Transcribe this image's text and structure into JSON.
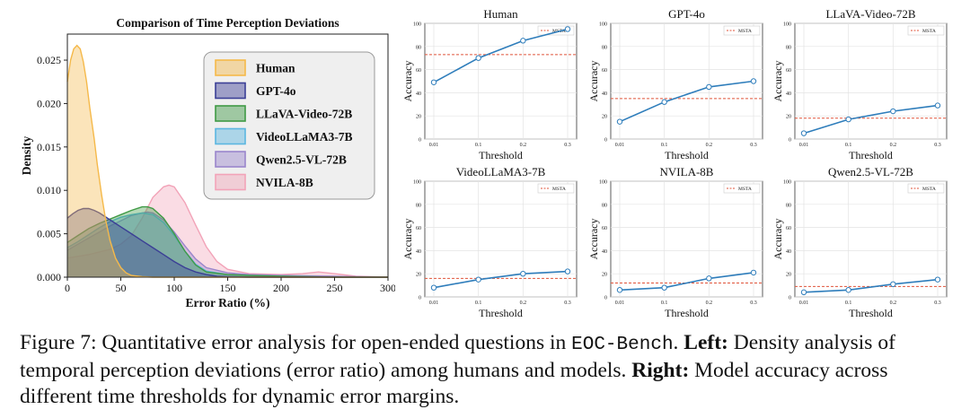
{
  "chart_data": [
    {
      "type": "area",
      "title": "Comparison of Time Perception Deviations",
      "xlabel": "Error Ratio (%)",
      "ylabel": "Density",
      "xlim": [
        0,
        300
      ],
      "ylim": [
        0,
        0.028
      ],
      "xticks": [
        "0",
        "50",
        "100",
        "150",
        "200",
        "250",
        "300"
      ],
      "yticks": [
        "0.000",
        "0.005",
        "0.010",
        "0.015",
        "0.020",
        "0.025"
      ],
      "legend_position": "top-right",
      "series": [
        {
          "name": "Human",
          "color": "#f5b94a",
          "x": [
            0,
            3,
            6,
            9,
            12,
            15,
            18,
            21,
            25,
            28,
            32,
            36,
            40,
            45,
            50,
            55,
            60,
            70,
            80,
            90,
            100,
            120,
            150,
            200,
            250,
            300
          ],
          "y": [
            0.0225,
            0.025,
            0.0263,
            0.0267,
            0.0263,
            0.0248,
            0.0225,
            0.0195,
            0.016,
            0.013,
            0.0095,
            0.0065,
            0.0042,
            0.0022,
            0.0011,
            0.0005,
            0.0002,
            5e-05,
            0,
            0,
            0,
            0,
            0,
            0,
            0,
            0
          ]
        },
        {
          "name": "GPT-4o",
          "color": "#3b3f96",
          "x": [
            0,
            5,
            10,
            15,
            20,
            25,
            30,
            40,
            50,
            60,
            70,
            80,
            90,
            100,
            110,
            120,
            130,
            140,
            150,
            170,
            200,
            250,
            300
          ],
          "y": [
            0.0068,
            0.0073,
            0.0077,
            0.0079,
            0.0079,
            0.0077,
            0.0074,
            0.0066,
            0.0058,
            0.005,
            0.0042,
            0.0034,
            0.0026,
            0.0018,
            0.0011,
            0.0006,
            0.0003,
            0.0001,
            5e-05,
            0,
            0,
            0,
            0
          ]
        },
        {
          "name": "LLaVA-Video-72B",
          "color": "#3f9a45",
          "x": [
            0,
            10,
            20,
            30,
            40,
            50,
            60,
            70,
            75,
            80,
            90,
            100,
            110,
            120,
            130,
            150,
            170,
            200,
            250,
            300
          ],
          "y": [
            0.004,
            0.0048,
            0.0056,
            0.0062,
            0.0067,
            0.0072,
            0.0077,
            0.0081,
            0.0081,
            0.0079,
            0.0068,
            0.005,
            0.003,
            0.0014,
            0.0006,
            0.0003,
            0.0002,
            0.0001,
            0,
            0
          ]
        },
        {
          "name": "VideoLLaMA3-7B",
          "color": "#5bb6e0",
          "x": [
            0,
            10,
            20,
            30,
            40,
            50,
            60,
            70,
            80,
            90,
            100,
            110,
            120,
            130,
            150,
            170,
            200,
            250,
            300
          ],
          "y": [
            0.0034,
            0.0041,
            0.0049,
            0.0057,
            0.0064,
            0.0069,
            0.0072,
            0.0074,
            0.0072,
            0.0063,
            0.0048,
            0.003,
            0.0015,
            0.0007,
            0.0003,
            0.0002,
            0.0001,
            0,
            0
          ]
        },
        {
          "name": "Qwen2.5-VL-72B",
          "color": "#9a86cc",
          "x": [
            0,
            10,
            20,
            30,
            40,
            50,
            60,
            70,
            75,
            80,
            90,
            100,
            110,
            120,
            130,
            150,
            170,
            200,
            250,
            300
          ],
          "y": [
            0.0031,
            0.0038,
            0.0045,
            0.0052,
            0.0059,
            0.0065,
            0.0071,
            0.0074,
            0.0075,
            0.0074,
            0.0066,
            0.0052,
            0.0036,
            0.0021,
            0.0011,
            0.0005,
            0.0003,
            0.0002,
            0.0001,
            0
          ]
        },
        {
          "name": "NVILA-8B",
          "color": "#f2a3b8",
          "x": [
            0,
            20,
            40,
            50,
            60,
            70,
            80,
            90,
            95,
            100,
            110,
            120,
            130,
            140,
            150,
            170,
            200,
            220,
            235,
            250,
            270,
            300
          ],
          "y": [
            0.0022,
            0.0026,
            0.0032,
            0.0038,
            0.0048,
            0.0068,
            0.0092,
            0.0104,
            0.0106,
            0.0104,
            0.0086,
            0.006,
            0.0035,
            0.0018,
            0.0009,
            0.0004,
            0.0003,
            0.0004,
            0.0006,
            0.0004,
            0.0001,
            0
          ]
        }
      ]
    },
    {
      "type": "line",
      "title": "Human",
      "xlabel": "Threshold",
      "ylabel": "Accuracy",
      "categories": [
        "0.01",
        "0.1",
        "0.2",
        "0.3"
      ],
      "values": [
        49,
        70,
        85,
        95
      ],
      "reference": {
        "name": "MSTA",
        "value": 73
      },
      "ylim": [
        0,
        100
      ],
      "yticks": [
        "0",
        "20",
        "40",
        "60",
        "80",
        "100"
      ]
    },
    {
      "type": "line",
      "title": "GPT-4o",
      "xlabel": "Threshold",
      "ylabel": "Accuracy",
      "categories": [
        "0.01",
        "0.1",
        "0.2",
        "0.3"
      ],
      "values": [
        15,
        32,
        45,
        50
      ],
      "reference": {
        "name": "MSTA",
        "value": 35
      },
      "ylim": [
        0,
        100
      ],
      "yticks": [
        "0",
        "20",
        "40",
        "60",
        "80",
        "100"
      ]
    },
    {
      "type": "line",
      "title": "LLaVA-Video-72B",
      "xlabel": "Threshold",
      "ylabel": "Accuracy",
      "categories": [
        "0.01",
        "0.1",
        "0.2",
        "0.3"
      ],
      "values": [
        5,
        17,
        24,
        29
      ],
      "reference": {
        "name": "MSTA",
        "value": 18
      },
      "ylim": [
        0,
        100
      ],
      "yticks": [
        "0",
        "20",
        "40",
        "60",
        "80",
        "100"
      ]
    },
    {
      "type": "line",
      "title": "VideoLLaMA3-7B",
      "xlabel": "Threshold",
      "ylabel": "Accuracy",
      "categories": [
        "0.01",
        "0.1",
        "0.2",
        "0.3"
      ],
      "values": [
        8,
        15,
        20,
        22
      ],
      "reference": {
        "name": "MSTA",
        "value": 16
      },
      "ylim": [
        0,
        100
      ],
      "yticks": [
        "0",
        "20",
        "40",
        "60",
        "80",
        "100"
      ]
    },
    {
      "type": "line",
      "title": "NVILA-8B",
      "xlabel": "Threshold",
      "ylabel": "Accuracy",
      "categories": [
        "0.01",
        "0.1",
        "0.2",
        "0.3"
      ],
      "values": [
        6,
        8,
        16,
        21
      ],
      "reference": {
        "name": "MSTA",
        "value": 12
      },
      "ylim": [
        0,
        100
      ],
      "yticks": [
        "0",
        "20",
        "40",
        "60",
        "80",
        "100"
      ]
    },
    {
      "type": "line",
      "title": "Qwen2.5-VL-72B",
      "xlabel": "Threshold",
      "ylabel": "Accuracy",
      "categories": [
        "0.01",
        "0.1",
        "0.2",
        "0.3"
      ],
      "values": [
        4,
        6,
        11,
        15
      ],
      "reference": {
        "name": "MSTA",
        "value": 9
      },
      "ylim": [
        0,
        100
      ],
      "yticks": [
        "0",
        "20",
        "40",
        "60",
        "80",
        "100"
      ]
    }
  ],
  "caption": {
    "label": "Figure 7:",
    "text1": "Quantitative error analysis for open-ended questions in",
    "bench": "EOC-Bench",
    "text2": ".",
    "left_label": "Left:",
    "left_text": "Density analysis of temporal perception deviations (error ratio) among humans and models.",
    "right_label": "Right:",
    "right_text": "Model accuracy across different time thresholds for dynamic error margins."
  }
}
